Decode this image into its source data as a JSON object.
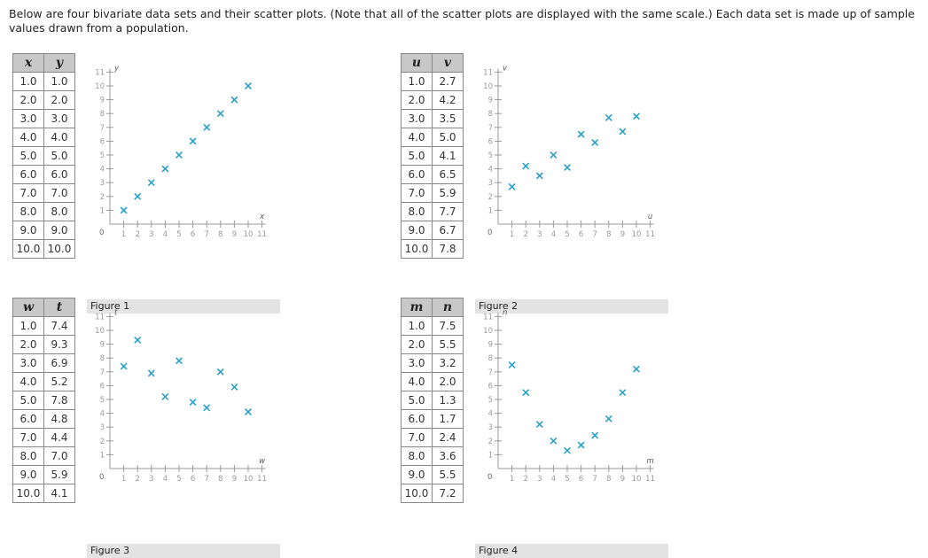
{
  "intro_text": "Below are four bivariate data sets and their scatter plots. (Note that all of the scatter plots are displayed with the same scale.) Each data set is made up of sample values drawn from a population.",
  "marker_color": "#2aa0c8",
  "panels": [
    {
      "col_x": "x",
      "col_y": "y",
      "rows": [
        [
          "1.0",
          "1.0"
        ],
        [
          "2.0",
          "2.0"
        ],
        [
          "3.0",
          "3.0"
        ],
        [
          "4.0",
          "4.0"
        ],
        [
          "5.0",
          "5.0"
        ],
        [
          "6.0",
          "6.0"
        ],
        [
          "7.0",
          "7.0"
        ],
        [
          "8.0",
          "8.0"
        ],
        [
          "9.0",
          "9.0"
        ],
        [
          "10.0",
          "10.0"
        ]
      ],
      "caption": "Figure 1"
    },
    {
      "col_x": "u",
      "col_y": "v",
      "rows": [
        [
          "1.0",
          "2.7"
        ],
        [
          "2.0",
          "4.2"
        ],
        [
          "3.0",
          "3.5"
        ],
        [
          "4.0",
          "5.0"
        ],
        [
          "5.0",
          "4.1"
        ],
        [
          "6.0",
          "6.5"
        ],
        [
          "7.0",
          "5.9"
        ],
        [
          "8.0",
          "7.7"
        ],
        [
          "9.0",
          "6.7"
        ],
        [
          "10.0",
          "7.8"
        ]
      ],
      "caption": "Figure 2"
    },
    {
      "col_x": "w",
      "col_y": "t",
      "rows": [
        [
          "1.0",
          "7.4"
        ],
        [
          "2.0",
          "9.3"
        ],
        [
          "3.0",
          "6.9"
        ],
        [
          "4.0",
          "5.2"
        ],
        [
          "5.0",
          "7.8"
        ],
        [
          "6.0",
          "4.8"
        ],
        [
          "7.0",
          "4.4"
        ],
        [
          "8.0",
          "7.0"
        ],
        [
          "9.0",
          "5.9"
        ],
        [
          "10.0",
          "4.1"
        ]
      ],
      "caption": "Figure 3"
    },
    {
      "col_x": "m",
      "col_y": "n",
      "rows": [
        [
          "1.0",
          "7.5"
        ],
        [
          "2.0",
          "5.5"
        ],
        [
          "3.0",
          "3.2"
        ],
        [
          "4.0",
          "2.0"
        ],
        [
          "5.0",
          "1.3"
        ],
        [
          "6.0",
          "1.7"
        ],
        [
          "7.0",
          "2.4"
        ],
        [
          "8.0",
          "3.6"
        ],
        [
          "9.0",
          "5.5"
        ],
        [
          "10.0",
          "7.2"
        ]
      ],
      "caption": "Figure 4"
    }
  ],
  "chart_data": [
    {
      "type": "scatter",
      "xlabel": "x",
      "ylabel": "y",
      "xlim": [
        0,
        11
      ],
      "ylim": [
        0,
        11
      ],
      "x_ticks": [
        "1",
        "2",
        "3",
        "4",
        "5",
        "6",
        "7",
        "8",
        "9",
        "10",
        "11"
      ],
      "y_ticks": [
        "1",
        "2",
        "3",
        "4",
        "5",
        "6",
        "7",
        "8",
        "9",
        "10",
        "11"
      ],
      "origin_label": "0",
      "x": [
        1,
        2,
        3,
        4,
        5,
        6,
        7,
        8,
        9,
        10
      ],
      "y": [
        1.0,
        2.0,
        3.0,
        4.0,
        5.0,
        6.0,
        7.0,
        8.0,
        9.0,
        10.0
      ]
    },
    {
      "type": "scatter",
      "xlabel": "u",
      "ylabel": "v",
      "xlim": [
        0,
        11
      ],
      "ylim": [
        0,
        11
      ],
      "x_ticks": [
        "1",
        "2",
        "3",
        "4",
        "5",
        "6",
        "7",
        "8",
        "9",
        "10",
        "11"
      ],
      "y_ticks": [
        "1",
        "2",
        "3",
        "4",
        "5",
        "6",
        "7",
        "8",
        "9",
        "10",
        "11"
      ],
      "origin_label": "0",
      "x": [
        1,
        2,
        3,
        4,
        5,
        6,
        7,
        8,
        9,
        10
      ],
      "y": [
        2.7,
        4.2,
        3.5,
        5.0,
        4.1,
        6.5,
        5.9,
        7.7,
        6.7,
        7.8
      ]
    },
    {
      "type": "scatter",
      "xlabel": "w",
      "ylabel": "t",
      "xlim": [
        0,
        11
      ],
      "ylim": [
        0,
        11
      ],
      "x_ticks": [
        "1",
        "2",
        "3",
        "4",
        "5",
        "6",
        "7",
        "8",
        "9",
        "10",
        "11"
      ],
      "y_ticks": [
        "1",
        "2",
        "3",
        "4",
        "5",
        "6",
        "7",
        "8",
        "9",
        "10",
        "11"
      ],
      "origin_label": "0",
      "x": [
        1,
        2,
        3,
        4,
        5,
        6,
        7,
        8,
        9,
        10
      ],
      "y": [
        7.4,
        9.3,
        6.9,
        5.2,
        7.8,
        4.8,
        4.4,
        7.0,
        5.9,
        4.1
      ]
    },
    {
      "type": "scatter",
      "xlabel": "m",
      "ylabel": "n",
      "xlim": [
        0,
        11
      ],
      "ylim": [
        0,
        11
      ],
      "x_ticks": [
        "1",
        "2",
        "3",
        "4",
        "5",
        "6",
        "7",
        "8",
        "9",
        "10",
        "11"
      ],
      "y_ticks": [
        "1",
        "2",
        "3",
        "4",
        "5",
        "6",
        "7",
        "8",
        "9",
        "10",
        "11"
      ],
      "origin_label": "0",
      "x": [
        1,
        2,
        3,
        4,
        5,
        6,
        7,
        8,
        9,
        10
      ],
      "y": [
        7.5,
        5.5,
        3.2,
        2.0,
        1.3,
        1.7,
        2.4,
        3.6,
        5.5,
        7.2
      ]
    }
  ]
}
